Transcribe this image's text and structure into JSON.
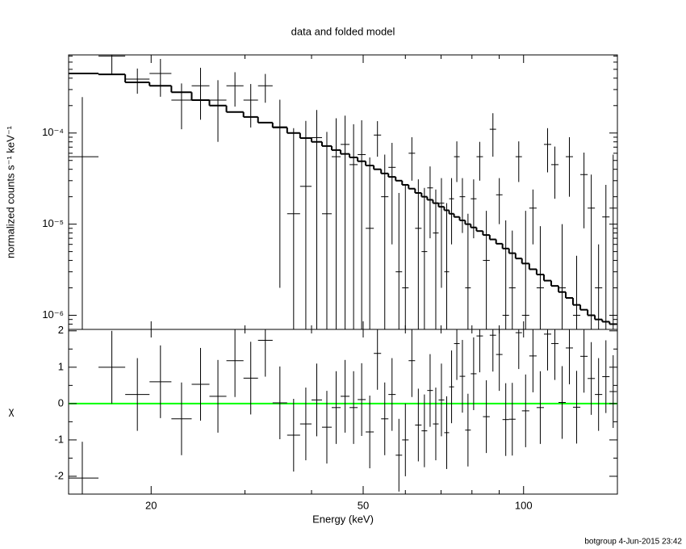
{
  "chart_data": [
    {
      "type": "errorbar",
      "title": "data and folded model",
      "ylabel": "normalized counts s⁻¹ keV⁻¹",
      "xscale": "log",
      "yscale": "log",
      "xlim": [
        14,
        150
      ],
      "ylim": [
        7e-07,
        0.00072
      ],
      "xticks": [
        20,
        50,
        100
      ],
      "xminor": [
        30,
        40,
        60,
        70,
        80,
        90
      ],
      "yticks": [
        {
          "value": 0.0001,
          "label": "10⁻⁴"
        },
        {
          "value": 1e-05,
          "label": "10⁻⁵"
        },
        {
          "value": 1e-06,
          "label": "10⁻⁶"
        }
      ],
      "yminor": [
        8e-07,
        9e-07,
        2e-06,
        3e-06,
        4e-06,
        5e-06,
        6e-06,
        7e-06,
        8e-06,
        9e-06,
        2e-05,
        3e-05,
        4e-05,
        5e-05,
        6e-05,
        7e-05,
        8e-05,
        9e-05,
        0.0002,
        0.0003,
        0.0004,
        0.0005,
        0.0006,
        0.0007
      ],
      "bins": [
        13.85,
        15.93,
        17.88,
        19.86,
        21.83,
        23.83,
        25.73,
        27.69,
        29.81,
        31.74,
        33.81,
        36.0,
        38.07,
        40.0,
        41.85,
        43.64,
        45.36,
        47.14,
        48.82,
        50.55,
        52.35,
        54.03,
        55.76,
        57.54,
        59.17,
        60.85,
        62.58,
        64.35,
        65.95,
        67.6,
        69.27,
        70.98,
        72.5,
        74.04,
        75.86,
        77.7,
        79.6,
        81.6,
        83.9,
        86.4,
        88.8,
        91.3,
        93.9,
        96.6,
        99.3,
        102.5,
        105.8,
        109.2,
        112.7,
        116.3,
        120.0,
        123.8,
        127.8,
        131.9,
        136.1,
        140.5,
        145.0,
        149.6
      ],
      "data": {
        "color": "#000000",
        "values": [
          5.5e-05,
          0.0007,
          0.00039,
          0.00045,
          0.00023,
          0.00033,
          0.00023,
          0.00033,
          0.00023,
          0.00033,
          0.000117,
          1.3e-05,
          2.6e-05,
          8.9e-05,
          1.3e-05,
          5.5e-05,
          7.5e-05,
          4.5e-05,
          5.8e-05,
          9e-06,
          9.5e-05,
          2e-05,
          4.2e-05,
          3e-06,
          2e-06,
          6e-05,
          9e-06,
          5e-06,
          2.5e-05,
          8e-06,
          1.7e-05,
          3e-06,
          1.9e-05,
          5.5e-05,
          2e-05,
          2e-06,
          1.9e-05,
          5.5e-05,
          4e-06,
          0.00011,
          2.1e-05,
          1e-06,
          2e-06,
          5.5e-05,
          1e-06,
          1.5e-05,
          2e-06,
          7.5e-05,
          4.5e-05,
          2e-06,
          5.5e-05,
          1e-06,
          3.5e-05,
          1.5e-05,
          2e-06,
          1.2e-05,
          1.5e-05
        ],
        "errors": [
          0.000193,
          0.00026,
          0.00012,
          0.0002,
          0.00012,
          0.00019,
          0.00015,
          0.000135,
          0.000115,
          0.000115,
          0.000115,
          0.0001,
          0.00011,
          9e-05,
          9e-05,
          9e-05,
          8e-05,
          8e-05,
          8e-05,
          4.5e-05,
          4e-05,
          3.8e-05,
          3.6e-05,
          1.9e-05,
          2.5e-05,
          3e-05,
          2.2e-05,
          2e-05,
          1.8e-05,
          1.6e-05,
          1.5e-05,
          1.4e-05,
          1.3e-05,
          2.6e-05,
          1.2e-05,
          1.1e-05,
          1.2e-05,
          2.5e-05,
          1e-05,
          5.5e-05,
          1.1e-05,
          1e-05,
          6.5e-06,
          2.6e-05,
          1.3e-05,
          9e-06,
          7.5e-06,
          3.8e-05,
          2.6e-05,
          8e-06,
          3.5e-05,
          3.5e-06,
          2.6e-05,
          2e-05,
          4e-06,
          1.5e-05,
          4.3e-05
        ]
      },
      "model": {
        "color": "#000000",
        "values": [
          0.00045,
          0.00044,
          0.00036,
          0.00033,
          0.00028,
          0.00023,
          0.0002,
          0.00017,
          0.00015,
          0.00013,
          0.000115,
          0.0001,
          8.8e-05,
          8e-05,
          7.2e-05,
          6.5e-05,
          5.9e-05,
          5.4e-05,
          4.9e-05,
          4.4e-05,
          4e-05,
          3.6e-05,
          3.3e-05,
          3e-05,
          2.7e-05,
          2.45e-05,
          2.2e-05,
          2e-05,
          1.85e-05,
          1.7e-05,
          1.55e-05,
          1.42e-05,
          1.3e-05,
          1.2e-05,
          1.1e-05,
          1e-05,
          9.2e-06,
          8.4e-06,
          7.6e-06,
          6.8e-06,
          6.1e-06,
          5.4e-06,
          4.8e-06,
          4.2e-06,
          3.7e-06,
          3.2e-06,
          2.8e-06,
          2.4e-06,
          2.1e-06,
          1.8e-06,
          1.55e-06,
          1.3e-06,
          1.15e-06,
          1e-06,
          9e-07,
          8.5e-07,
          8e-07
        ]
      }
    },
    {
      "type": "errorbar",
      "ylabel": "χ",
      "xlabel": "Energy (keV)",
      "xscale": "log",
      "xlim": [
        14,
        150
      ],
      "ylim": [
        -2.49,
        2.04
      ],
      "xticks": [
        20,
        50,
        100
      ],
      "xminor": [
        30,
        40,
        60,
        70,
        80,
        90
      ],
      "yticks": [
        -2,
        -1,
        0,
        1,
        2
      ],
      "yminor": [
        -1.5,
        -0.5,
        0.5,
        1.5
      ],
      "zero_line_color": "#00ff00",
      "data": {
        "color": "#000000",
        "values": [
          -2.05,
          1.0,
          0.25,
          0.6,
          -0.42,
          0.53,
          0.2,
          1.18,
          0.7,
          1.74,
          0.02,
          -0.87,
          -0.56,
          0.1,
          -0.65,
          -0.11,
          0.2,
          -0.11,
          0.11,
          -0.78,
          1.38,
          -0.42,
          0.25,
          -1.42,
          -1.0,
          1.18,
          -0.59,
          -0.75,
          0.36,
          -0.56,
          0.1,
          -0.8,
          0.46,
          1.65,
          0.75,
          -0.73,
          0.82,
          1.86,
          -0.36,
          1.88,
          1.35,
          -0.44,
          -0.43,
          1.95,
          -0.2,
          1.31,
          -0.11,
          1.91,
          1.65,
          0.03,
          1.53,
          -0.1,
          1.3,
          0.69,
          0.25,
          0.74,
          0.33
        ],
        "errors": [
          1,
          1,
          1,
          1,
          1,
          1,
          1,
          1,
          1,
          1,
          1,
          1,
          1,
          1,
          1,
          1,
          1,
          1,
          1,
          1,
          1,
          1,
          1,
          1,
          1,
          1,
          1,
          1,
          1,
          1,
          1,
          1,
          1,
          1,
          1,
          1,
          1,
          1,
          1,
          1,
          1,
          1,
          1,
          1,
          1,
          1,
          1,
          1,
          1,
          1,
          1,
          1,
          1,
          1,
          1,
          1,
          1
        ]
      }
    }
  ],
  "footer": "botgroup  4-Jun-2015 23:42"
}
